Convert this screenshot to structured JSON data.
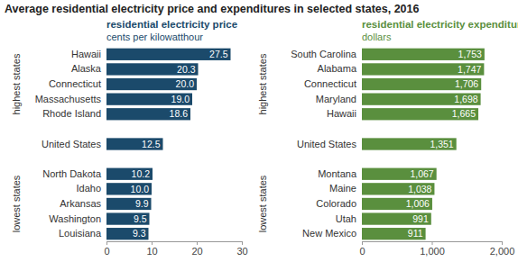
{
  "title": "Average residential electricity price and expenditures in selected states, 2016",
  "chart_data": [
    {
      "type": "bar",
      "orientation": "horizontal",
      "data_labels": true,
      "color": "#1b4a6b",
      "title": "residential electricity price",
      "subtitle": "cents per kilowatthour",
      "annotations": [
        "highest states",
        "lowest states"
      ],
      "categories": [
        "Hawaii",
        "Alaska",
        "Connecticut",
        "Massachusetts",
        "Rhode Island",
        null,
        "United States",
        null,
        "North Dakota",
        "Idaho",
        "Arkansas",
        "Washington",
        "Louisiana"
      ],
      "values": [
        27.5,
        20.3,
        20.0,
        19.0,
        18.6,
        null,
        12.5,
        null,
        10.2,
        10.0,
        9.9,
        9.5,
        9.3
      ],
      "value_labels": [
        "27.5",
        "20.3",
        "20.0",
        "19.0",
        "18.6",
        null,
        "12.5",
        null,
        "10.2",
        "10.0",
        "9.9",
        "9.5",
        "9.3"
      ],
      "xlim": [
        0,
        30
      ],
      "xticks": [
        0,
        10,
        20,
        30
      ]
    },
    {
      "type": "bar",
      "orientation": "horizontal",
      "data_labels": true,
      "color": "#5a8f3e",
      "title": "residential electricity expenditures",
      "subtitle": "dollars",
      "annotations": [
        "highest states",
        "lowest states"
      ],
      "categories": [
        "South Carolina",
        "Alabama",
        "Connecticut",
        "Maryland",
        "Hawaii",
        null,
        "United States",
        null,
        "Montana",
        "Maine",
        "Colorado",
        "Utah",
        "New Mexico"
      ],
      "values": [
        1753,
        1747,
        1706,
        1698,
        1665,
        null,
        1351,
        null,
        1067,
        1038,
        1006,
        991,
        911
      ],
      "value_labels": [
        "1,753",
        "1,747",
        "1,706",
        "1,698",
        "1,665",
        null,
        "1,351",
        null,
        "1,067",
        "1,038",
        "1,006",
        "991",
        "911"
      ],
      "xlim": [
        0,
        2000
      ],
      "xticks": [
        0,
        {
          "value": 1000,
          "label": "1,000"
        },
        {
          "value": 2000,
          "label": "2,000"
        }
      ]
    }
  ]
}
